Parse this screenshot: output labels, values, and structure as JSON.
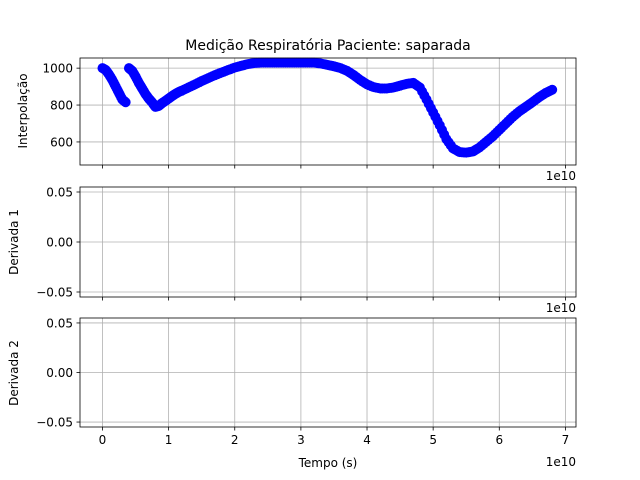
{
  "chart_data": [
    {
      "type": "scatter",
      "title": "Medição Respiratória Paciente: saparada",
      "xlabel": "",
      "ylabel": "Interpolação",
      "x_offset_label": "1e10",
      "xlim": [
        -0.34,
        7.16
      ],
      "ylim": [
        475,
        1055
      ],
      "xticks": [
        0,
        1,
        2,
        3,
        4,
        5,
        6,
        7
      ],
      "xtick_labels_visible": false,
      "yticks": [
        600,
        800,
        1000
      ],
      "ytick_labels": [
        "600",
        "800",
        "1000"
      ],
      "grid": true,
      "marker_color": "#0000ff",
      "series": [
        {
          "x": [
            0.0,
            0.05,
            0.1,
            0.15,
            0.2,
            0.25,
            0.3,
            0.35,
            0.4,
            0.45,
            0.5,
            0.55,
            0.6,
            0.65,
            0.7,
            0.75,
            0.8,
            0.85,
            0.9,
            0.95,
            1.0,
            1.05,
            1.1,
            1.15,
            1.2,
            1.3,
            1.4,
            1.5,
            1.6,
            1.7,
            1.8,
            1.9,
            2.0,
            2.1,
            2.2,
            2.3,
            2.4,
            2.5,
            2.6,
            2.7,
            2.8,
            2.9,
            3.0,
            3.1,
            3.2,
            3.3,
            3.4,
            3.5,
            3.6,
            3.7,
            3.8,
            3.9,
            4.0,
            4.1,
            4.2,
            4.3,
            4.4,
            4.5,
            4.6,
            4.7,
            4.8,
            4.9,
            5.0,
            5.1,
            5.2,
            5.3,
            5.4,
            5.5,
            5.6,
            5.7,
            5.8,
            5.9,
            6.0,
            6.1,
            6.2,
            6.3,
            6.4,
            6.5,
            6.6,
            6.7,
            6.8
          ],
          "y": [
            1000,
            990,
            965,
            935,
            900,
            865,
            830,
            815,
            1000,
            985,
            955,
            920,
            890,
            860,
            835,
            815,
            790,
            795,
            810,
            822,
            835,
            848,
            860,
            870,
            878,
            895,
            912,
            930,
            946,
            962,
            976,
            990,
            1003,
            1013,
            1022,
            1028,
            1030,
            1030,
            1030,
            1030,
            1030,
            1030,
            1030,
            1030,
            1030,
            1025,
            1018,
            1010,
            1000,
            985,
            962,
            935,
            912,
            897,
            890,
            890,
            895,
            905,
            915,
            920,
            895,
            830,
            760,
            690,
            615,
            565,
            545,
            542,
            548,
            570,
            600,
            630,
            665,
            700,
            735,
            765,
            790,
            815,
            842,
            865,
            883
          ]
        }
      ]
    },
    {
      "type": "line",
      "xlabel": "",
      "ylabel": "Derivada 1",
      "x_offset_label": "1e10",
      "xlim": [
        -0.34,
        7.16
      ],
      "ylim": [
        -0.055,
        0.055
      ],
      "xticks": [
        0,
        1,
        2,
        3,
        4,
        5,
        6,
        7
      ],
      "xtick_labels_visible": false,
      "yticks": [
        -0.05,
        0.0,
        0.05
      ],
      "ytick_labels": [
        "−0.05",
        "0.00",
        "0.05"
      ],
      "grid": true,
      "series": []
    },
    {
      "type": "line",
      "xlabel": "Tempo (s)",
      "ylabel": "Derivada 2",
      "x_offset_label": "1e10",
      "xlim": [
        -0.34,
        7.16
      ],
      "ylim": [
        -0.055,
        0.055
      ],
      "xticks": [
        0,
        1,
        2,
        3,
        4,
        5,
        6,
        7
      ],
      "xtick_labels": [
        "0",
        "1",
        "2",
        "3",
        "4",
        "5",
        "6",
        "7"
      ],
      "xtick_labels_visible": true,
      "yticks": [
        -0.05,
        0.0,
        0.05
      ],
      "ytick_labels": [
        "−0.05",
        "0.00",
        "0.05"
      ],
      "grid": true,
      "series": []
    }
  ]
}
